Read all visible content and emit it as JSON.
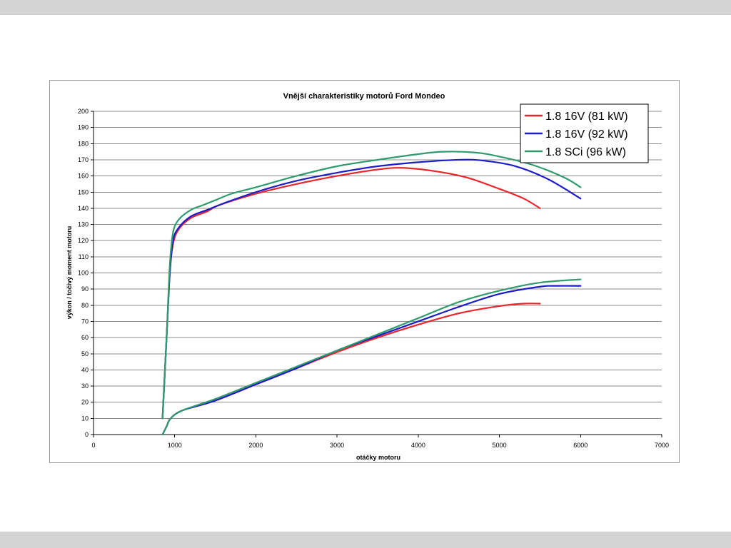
{
  "chart_data": {
    "type": "line",
    "title": "Vnější charakteristiky motorů Ford Mondeo",
    "xlabel": "otáčky motoru",
    "ylabel": "výkon / točivý moment motoru",
    "xlim": [
      0,
      7000
    ],
    "ylim": [
      0,
      200
    ],
    "xticks": [
      0,
      1000,
      2000,
      3000,
      4000,
      5000,
      6000,
      7000
    ],
    "yticks": [
      0,
      10,
      20,
      30,
      40,
      50,
      60,
      70,
      80,
      90,
      100,
      110,
      120,
      130,
      140,
      150,
      160,
      170,
      180,
      190,
      200
    ],
    "grid": "horizontal",
    "legend_position": "top-right",
    "series": [
      {
        "name": "1.8 16V (81 kW)",
        "color": "#e8262b",
        "torque": [
          [
            850,
            10
          ],
          [
            900,
            60
          ],
          [
            940,
            100
          ],
          [
            980,
            118
          ],
          [
            1050,
            127
          ],
          [
            1200,
            134
          ],
          [
            1400,
            138
          ],
          [
            1550,
            142
          ],
          [
            2000,
            149
          ],
          [
            2500,
            155
          ],
          [
            3000,
            160
          ],
          [
            3500,
            164
          ],
          [
            3800,
            165
          ],
          [
            4200,
            163
          ],
          [
            4600,
            159
          ],
          [
            5000,
            152
          ],
          [
            5300,
            146
          ],
          [
            5500,
            140
          ]
        ],
        "power": [
          [
            850,
            0
          ],
          [
            900,
            5
          ],
          [
            950,
            10
          ],
          [
            1100,
            15
          ],
          [
            1500,
            21
          ],
          [
            2000,
            31
          ],
          [
            2500,
            41
          ],
          [
            3000,
            51
          ],
          [
            3500,
            60
          ],
          [
            4000,
            68
          ],
          [
            4500,
            75
          ],
          [
            5000,
            79.5
          ],
          [
            5300,
            81
          ],
          [
            5500,
            81
          ]
        ]
      },
      {
        "name": "1.8 16V (92 kW)",
        "color": "#1c1cc8",
        "torque": [
          [
            850,
            10
          ],
          [
            900,
            60
          ],
          [
            940,
            100
          ],
          [
            980,
            120
          ],
          [
            1050,
            128
          ],
          [
            1200,
            135
          ],
          [
            1400,
            139
          ],
          [
            1600,
            143
          ],
          [
            2000,
            150
          ],
          [
            2500,
            157
          ],
          [
            3000,
            162
          ],
          [
            3500,
            166
          ],
          [
            4000,
            168.5
          ],
          [
            4500,
            170
          ],
          [
            4800,
            169.5
          ],
          [
            5200,
            166
          ],
          [
            5600,
            158
          ],
          [
            6000,
            146
          ]
        ],
        "power": [
          [
            850,
            0
          ],
          [
            900,
            5
          ],
          [
            950,
            10
          ],
          [
            1100,
            15
          ],
          [
            1500,
            21
          ],
          [
            2000,
            31
          ],
          [
            2500,
            41
          ],
          [
            3000,
            52
          ],
          [
            3500,
            61
          ],
          [
            4000,
            70
          ],
          [
            4500,
            79
          ],
          [
            5000,
            87
          ],
          [
            5500,
            91.5
          ],
          [
            5700,
            92
          ],
          [
            6000,
            92
          ]
        ]
      },
      {
        "name": "1.8 SCi (96 kW)",
        "color": "#2f9b6e",
        "torque": [
          [
            850,
            10
          ],
          [
            900,
            60
          ],
          [
            940,
            105
          ],
          [
            980,
            125
          ],
          [
            1050,
            133
          ],
          [
            1200,
            139
          ],
          [
            1350,
            142
          ],
          [
            1500,
            145
          ],
          [
            1700,
            149
          ],
          [
            2000,
            153
          ],
          [
            2500,
            160
          ],
          [
            3000,
            166
          ],
          [
            3500,
            170
          ],
          [
            4000,
            173.5
          ],
          [
            4300,
            175
          ],
          [
            4700,
            174.5
          ],
          [
            5000,
            172
          ],
          [
            5400,
            167
          ],
          [
            5800,
            159
          ],
          [
            6000,
            153
          ]
        ],
        "power": [
          [
            850,
            0
          ],
          [
            900,
            5
          ],
          [
            950,
            10
          ],
          [
            1100,
            15
          ],
          [
            1500,
            22
          ],
          [
            2000,
            32
          ],
          [
            2500,
            42
          ],
          [
            3000,
            52
          ],
          [
            3500,
            62
          ],
          [
            4000,
            72
          ],
          [
            4500,
            82
          ],
          [
            5000,
            89
          ],
          [
            5500,
            94
          ],
          [
            6000,
            96
          ]
        ]
      }
    ]
  }
}
